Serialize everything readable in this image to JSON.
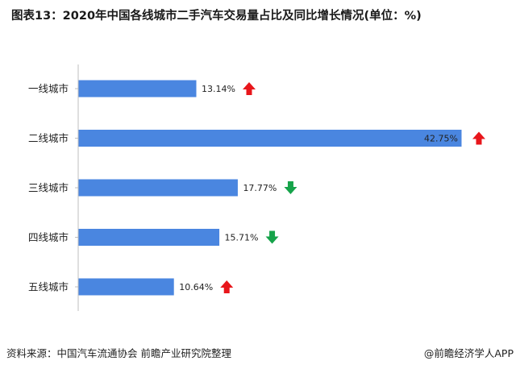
{
  "title": "图表13：2020年中国各线城市二手汽车交易量占比及同比增长情况(单位：%)",
  "source": "资料来源：中国汽车流通协会 前瞻产业研究院整理",
  "credit": "@前瞻经济学人APP",
  "colors": {
    "bar": "#4a86e0",
    "up": "#e8161b",
    "down": "#16a34a",
    "axis": "#bfbfbf",
    "text": "#222222"
  },
  "chart_data": {
    "type": "bar",
    "orientation": "horizontal",
    "categories": [
      "一线城市",
      "二线城市",
      "三线城市",
      "四线城市",
      "五线城市"
    ],
    "values": [
      13.14,
      42.75,
      17.77,
      15.71,
      10.64
    ],
    "value_labels": [
      "13.14%",
      "42.75%",
      "17.77%",
      "15.71%",
      "10.64%"
    ],
    "yoy_trend": [
      "up",
      "up",
      "down",
      "down",
      "up"
    ],
    "xlim": [
      0,
      42.75
    ],
    "grid": false,
    "legend": "none",
    "title": "图表13：2020年中国各线城市二手汽车交易量占比及同比增长情况(单位：%)"
  }
}
